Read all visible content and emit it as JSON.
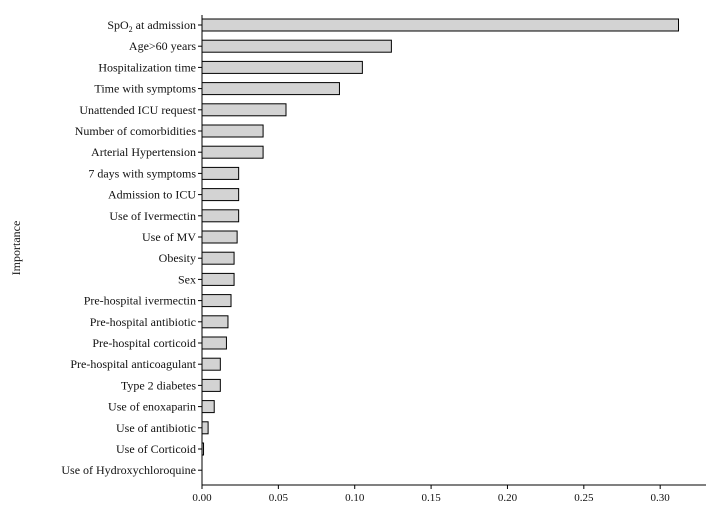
{
  "chart_data": {
    "type": "bar",
    "orientation": "horizontal",
    "ylabel": "Importance",
    "xlabel": "",
    "xlim": [
      0,
      0.33
    ],
    "xticks": [
      "0.00",
      "0.05",
      "0.10",
      "0.15",
      "0.20",
      "0.25",
      "0.30"
    ],
    "categories": [
      "SpO2 at admission",
      "Age>60 years",
      "Hospitalization time",
      "Time with symptoms",
      "Unattended ICU request",
      "Number of comorbidities",
      "Arterial Hypertension",
      "7 days with symptoms",
      "Admission to ICU",
      "Use of Ivermectin",
      "Use of MV",
      "Obesity",
      "Sex",
      "Pre-hospital ivermectin",
      "Pre-hospital antibiotic",
      "Pre-hospital corticoid",
      "Pre-hospital anticoagulant",
      "Type 2 diabetes",
      "Use of enoxaparin",
      "Use of antibiotic",
      "Use of Corticoid",
      "Use of Hydroxychloroquine"
    ],
    "values": [
      0.312,
      0.124,
      0.105,
      0.09,
      0.055,
      0.04,
      0.04,
      0.024,
      0.024,
      0.024,
      0.023,
      0.021,
      0.021,
      0.019,
      0.017,
      0.016,
      0.012,
      0.012,
      0.008,
      0.004,
      0.001,
      0.0
    ],
    "grid": false,
    "legend": "none",
    "bar_color": "#d3d3d3"
  }
}
